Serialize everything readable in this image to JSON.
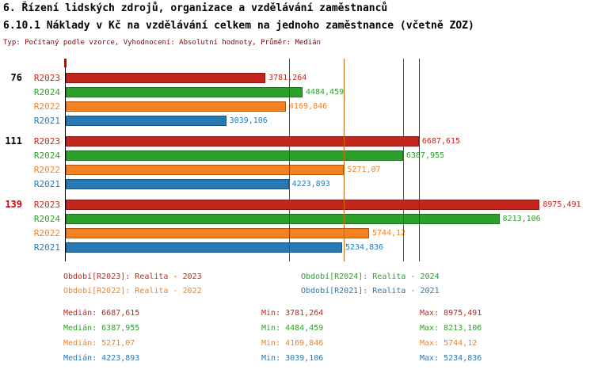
{
  "header": {
    "title_line1": "6. Řízení lidských zdrojů, organizace a vzdělávání zaměstnanců",
    "title_line2": "6.10.1 Náklady v Kč na vzdělávání celkem na jednoho zaměstnance (včetně ZOZ)",
    "subtitle": "Typ: Počítaný podle vzorce, Vyhodnocení: Absolutní hodnoty, Průměr: Medián"
  },
  "colors": {
    "series": {
      "R2023": "#c4261d",
      "R2024": "#2da02c",
      "R2022": "#f58220",
      "R2021": "#2779b4"
    },
    "median_lines": {
      "R2023": "#8f1c13",
      "R2024": "#1f7a1e",
      "R2022": "#c96a10",
      "R2021": "#1c5b8a"
    },
    "subtitle": "#8b0000",
    "axis_tick": "#cc0000",
    "axis": "#000000"
  },
  "chart_data": {
    "type": "bar",
    "orientation": "horizontal",
    "title": "6.10.1 Náklady v Kč na vzdělávání celkem na jednoho zaměstnance (včetně ZOZ)",
    "xlim": [
      0,
      9000
    ],
    "x_max": 9000,
    "grid": false,
    "series_order": [
      "R2023",
      "R2024",
      "R2022",
      "R2021"
    ],
    "groups": [
      {
        "label": "76",
        "label_color": "#000000",
        "values": {
          "R2023": 3781.264,
          "R2024": 4484.459,
          "R2022": 4169.846,
          "R2021": 3039.106
        },
        "value_labels": {
          "R2023": "3781,264",
          "R2024": "4484,459",
          "R2022": "4169,846",
          "R2021": "3039,106"
        }
      },
      {
        "label": "111",
        "label_color": "#000000",
        "values": {
          "R2023": 6687.615,
          "R2024": 6387.955,
          "R2022": 5271.07,
          "R2021": 4223.893
        },
        "value_labels": {
          "R2023": "6687,615",
          "R2024": "6387,955",
          "R2022": "5271,07",
          "R2021": "4223,893"
        }
      },
      {
        "label": "139",
        "label_color": "#d40000",
        "values": {
          "R2023": 8975.491,
          "R2024": 8213.106,
          "R2022": 5744.12,
          "R2021": 5234.836
        },
        "value_labels": {
          "R2023": "8975,491",
          "R2024": "8213,106",
          "R2022": "5744,12",
          "R2021": "5234,836"
        }
      }
    ],
    "median_lines": [
      {
        "series": "R2023",
        "value": 6687.615
      },
      {
        "series": "R2024",
        "value": 6387.955
      },
      {
        "series": "R2022",
        "value": 5271.07
      },
      {
        "series": "R2021",
        "value": 4223.893
      }
    ]
  },
  "legend": [
    {
      "series": "R2023",
      "label": "Období[R2023]: Realita - 2023"
    },
    {
      "series": "R2024",
      "label": "Období[R2024]: Realita - 2024"
    },
    {
      "series": "R2022",
      "label": "Období[R2022]: Realita - 2022"
    },
    {
      "series": "R2021",
      "label": "Období[R2021]: Realita - 2021"
    }
  ],
  "stats": [
    {
      "series": "R2023",
      "median": "Medián: 6687,615",
      "min": "Min: 3781,264",
      "max": "Max: 8975,491"
    },
    {
      "series": "R2024",
      "median": "Medián: 6387,955",
      "min": "Min: 4484,459",
      "max": "Max: 8213,106"
    },
    {
      "series": "R2022",
      "median": "Medián: 5271,07",
      "min": "Min: 4169,846",
      "max": "Max: 5744,12"
    },
    {
      "series": "R2021",
      "median": "Medián: 4223,893",
      "min": "Min: 3039,106",
      "max": "Max: 5234,836"
    }
  ]
}
